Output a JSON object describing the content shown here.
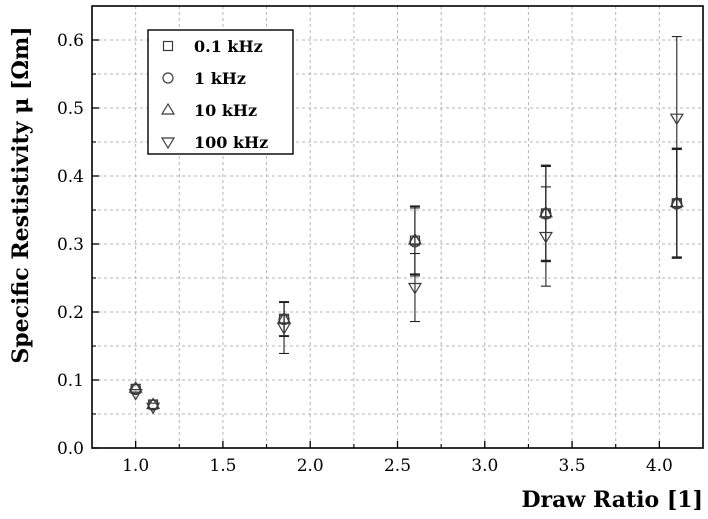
{
  "chart_data": {
    "type": "scatter",
    "title": "",
    "xlabel": "Draw Ratio [1]",
    "ylabel": "Specific Restistivity μ [Ωm]",
    "xlim": [
      0.75,
      4.25
    ],
    "ylim": [
      0.0,
      0.65
    ],
    "x_ticks": [
      "1.0",
      "1.5",
      "2.0",
      "2.5",
      "3.0",
      "3.5",
      "4.0"
    ],
    "y_ticks": [
      "0.0",
      "0.1",
      "0.2",
      "0.3",
      "0.4",
      "0.5",
      "0.6"
    ],
    "grid": true,
    "legend_position": "top-left",
    "series": [
      {
        "name": "0.1 kHz",
        "marker": "square",
        "points": [
          {
            "x": 1.0,
            "y": 0.087,
            "err": 0.0
          },
          {
            "x": 1.1,
            "y": 0.064,
            "err": 0.0
          },
          {
            "x": 1.85,
            "y": 0.19,
            "err": 0.025
          },
          {
            "x": 2.6,
            "y": 0.305,
            "err": 0.05
          },
          {
            "x": 3.35,
            "y": 0.345,
            "err": 0.07
          },
          {
            "x": 4.1,
            "y": 0.36,
            "err": 0.08
          }
        ]
      },
      {
        "name": "1 kHz",
        "marker": "circle",
        "points": [
          {
            "x": 1.0,
            "y": 0.086,
            "err": 0.0
          },
          {
            "x": 1.1,
            "y": 0.063,
            "err": 0.0
          },
          {
            "x": 1.85,
            "y": 0.189,
            "err": 0.025
          },
          {
            "x": 2.6,
            "y": 0.303,
            "err": 0.05
          },
          {
            "x": 3.35,
            "y": 0.344,
            "err": 0.07
          },
          {
            "x": 4.1,
            "y": 0.359,
            "err": 0.08
          }
        ]
      },
      {
        "name": "10 kHz",
        "marker": "triangle-up",
        "points": [
          {
            "x": 1.0,
            "y": 0.088,
            "err": 0.0
          },
          {
            "x": 1.1,
            "y": 0.064,
            "err": 0.0
          },
          {
            "x": 1.85,
            "y": 0.19,
            "err": 0.025
          },
          {
            "x": 2.6,
            "y": 0.306,
            "err": 0.05
          },
          {
            "x": 3.35,
            "y": 0.346,
            "err": 0.07
          },
          {
            "x": 4.1,
            "y": 0.361,
            "err": 0.08
          }
        ]
      },
      {
        "name": "100 kHz",
        "marker": "triangle-down",
        "points": [
          {
            "x": 1.0,
            "y": 0.08,
            "err": 0.0
          },
          {
            "x": 1.1,
            "y": 0.06,
            "err": 0.0
          },
          {
            "x": 1.85,
            "y": 0.177,
            "err": 0.038
          },
          {
            "x": 2.6,
            "y": 0.236,
            "err": 0.05
          },
          {
            "x": 3.35,
            "y": 0.311,
            "err": 0.073
          },
          {
            "x": 4.1,
            "y": 0.485,
            "err": 0.12
          }
        ]
      }
    ]
  }
}
